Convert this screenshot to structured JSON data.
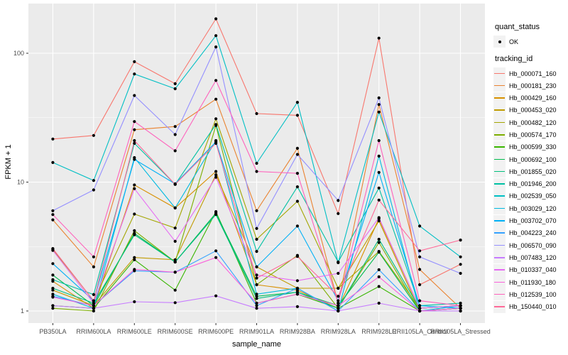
{
  "figure": {
    "y_axis_title": "FPKM + 1",
    "x_axis_title": "sample_name"
  },
  "legends": {
    "quant_status": {
      "title": "quant_status",
      "items": [
        {
          "label": "OK",
          "symbol": "black-point-icon"
        }
      ]
    },
    "tracking_id": {
      "title": "tracking_id"
    }
  },
  "colors": {
    "panel_background": "#EBEBEB",
    "grid_major": "#FFFFFF",
    "grid_minor": "#FFFFFF",
    "tick_label": "#4D4D4D",
    "tick_mark": "#333333",
    "point": "#000000",
    "legend_key_background": "#F2F2F2"
  },
  "chart_data": {
    "type": "line",
    "title": "",
    "xlabel": "sample_name",
    "ylabel": "FPKM + 1",
    "x_scale": "discrete",
    "y_scale": "log10",
    "y_ticks": [
      1,
      10,
      100
    ],
    "y_minor_ticks": [
      3.1623,
      31.623
    ],
    "ylim": [
      0.8,
      240
    ],
    "grid": true,
    "legend_position": "right",
    "point_marker": "black dot (quant_status OK)",
    "categories": [
      "PB350LA",
      "RRIM600LA",
      "RRIM600LE",
      "RRIM600SE",
      "RRIM600PE",
      "RRIM901LA",
      "RRIM928BA",
      "RRIM928LA",
      "RRIM928LE",
      "RRII105LA_Control",
      "RRII105LA_Stressed"
    ],
    "series": [
      {
        "name": "Hb_000071_160",
        "color": "#F8766D",
        "values": [
          21.6,
          23,
          86,
          58,
          185,
          34,
          33,
          5.7,
          131,
          1.6,
          2.3
        ]
      },
      {
        "name": "Hb_000181_230",
        "color": "#EA8331",
        "values": [
          5.1,
          2.2,
          25.5,
          27,
          44,
          6.0,
          18.3,
          1.15,
          40,
          2.1,
          1.05
        ]
      },
      {
        "name": "Hb_000429_160",
        "color": "#D89000",
        "values": [
          1.7,
          1.05,
          9.5,
          6.3,
          12.1,
          1.6,
          1.45,
          1.05,
          5.2,
          1.05,
          1.1
        ]
      },
      {
        "name": "Hb_000453_020",
        "color": "#C09B00",
        "values": [
          1.45,
          1.1,
          2.6,
          2.5,
          11.4,
          2.2,
          1.5,
          1.5,
          5.0,
          1.0,
          1.05
        ]
      },
      {
        "name": "Hb_000482_120",
        "color": "#A3A500",
        "values": [
          3.0,
          1.2,
          5.65,
          4.4,
          31,
          3.6,
          7.1,
          1.5,
          2.9,
          1.05,
          1.1
        ]
      },
      {
        "name": "Hb_000574_170",
        "color": "#7CAE00",
        "values": [
          1.05,
          1.0,
          4.2,
          2.4,
          27.5,
          1.6,
          2.7,
          1.05,
          3.4,
          1.0,
          1.0
        ]
      },
      {
        "name": "Hb_000599_330",
        "color": "#39B600",
        "values": [
          1.1,
          1.05,
          2.5,
          1.45,
          5.9,
          1.15,
          1.35,
          1.05,
          1.55,
          1.0,
          1.05
        ]
      },
      {
        "name": "Hb_000692_100",
        "color": "#00BB4E",
        "values": [
          1.9,
          1.1,
          4.0,
          2.4,
          5.75,
          1.3,
          1.4,
          1.1,
          2.86,
          1.0,
          1.05
        ]
      },
      {
        "name": "Hb_001855_020",
        "color": "#00BF7D",
        "values": [
          1.5,
          1.15,
          3.9,
          2.4,
          5.6,
          1.25,
          1.4,
          1.05,
          3.6,
          1.05,
          1.1
        ]
      },
      {
        "name": "Hb_001946_200",
        "color": "#00C1A3",
        "values": [
          1.75,
          1.34,
          20,
          9.6,
          28,
          2.9,
          9.2,
          2.4,
          9.0,
          1.1,
          1.15
        ]
      },
      {
        "name": "Hb_002539_050",
        "color": "#00BFC4",
        "values": [
          14.2,
          10.3,
          69,
          53,
          137,
          14,
          41.6,
          2.37,
          35,
          4.56,
          2.63
        ]
      },
      {
        "name": "Hb_003029_120",
        "color": "#00BAE0",
        "values": [
          1.35,
          1.05,
          15.5,
          6.3,
          21,
          1.35,
          1.5,
          1.0,
          15.9,
          1.0,
          1.1
        ]
      },
      {
        "name": "Hb_003702_070",
        "color": "#00B0F6",
        "values": [
          2.33,
          1.2,
          15,
          9.7,
          20.5,
          2.2,
          4.56,
          1.2,
          11.9,
          1.1,
          1.05
        ]
      },
      {
        "name": "Hb_004223_240",
        "color": "#35A2FF",
        "values": [
          1.3,
          1.1,
          2.05,
          2.0,
          2.93,
          1.1,
          1.5,
          1.0,
          2.09,
          1.0,
          1.0
        ]
      },
      {
        "name": "Hb_006570_090",
        "color": "#9590FF",
        "values": [
          6.0,
          8.7,
          47,
          23.4,
          112,
          4.37,
          16.4,
          7.2,
          45,
          2.63,
          1.96
        ]
      },
      {
        "name": "Hb_007483_120",
        "color": "#C77CFF",
        "values": [
          1.1,
          1.05,
          1.18,
          1.16,
          1.31,
          1.05,
          1.08,
          1.0,
          1.15,
          1.0,
          1.0
        ]
      },
      {
        "name": "Hb_010337_040",
        "color": "#E76BF3",
        "values": [
          2.95,
          1.15,
          8.9,
          3.47,
          10.9,
          1.9,
          1.72,
          1.96,
          5.3,
          1.05,
          1.1
        ]
      },
      {
        "name": "Hb_011930_180",
        "color": "#FA62DB",
        "values": [
          1.28,
          1.1,
          2.1,
          2.0,
          2.6,
          1.15,
          1.35,
          1.1,
          1.84,
          1.0,
          1.05
        ]
      },
      {
        "name": "Hb_012539_100",
        "color": "#FF62BC",
        "values": [
          5.6,
          2.63,
          29.5,
          17.5,
          61.5,
          12.1,
          11.7,
          1.15,
          21,
          1.2,
          1.1
        ]
      },
      {
        "name": "Hb_150440_010",
        "color": "#FF6A98",
        "values": [
          3.05,
          1.2,
          21,
          9.6,
          20,
          1.8,
          2.65,
          1.3,
          7.25,
          2.93,
          3.55
        ]
      }
    ]
  }
}
